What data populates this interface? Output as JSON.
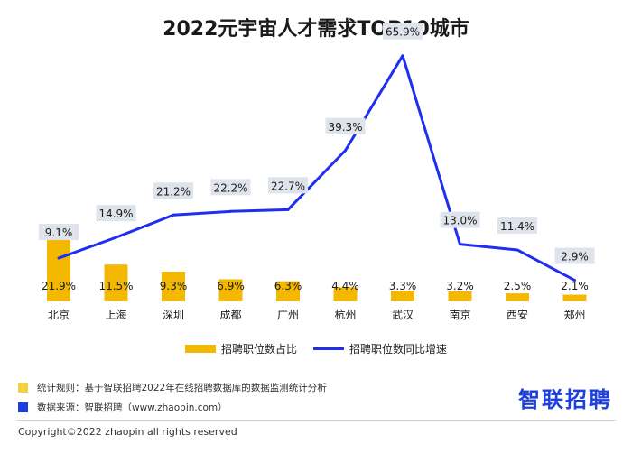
{
  "chart_data": {
    "type": "bar+line",
    "title": "2022元宇宙人才需求TOP10城市",
    "categories": [
      "北京",
      "上海",
      "深圳",
      "成都",
      "广州",
      "杭州",
      "武汉",
      "南京",
      "西安",
      "郑州"
    ],
    "series": [
      {
        "name": "招聘职位数占比",
        "kind": "bar",
        "values": [
          21.9,
          11.5,
          9.3,
          6.9,
          6.3,
          4.4,
          3.3,
          3.2,
          2.5,
          2.1
        ],
        "labels": [
          "21.9%",
          "11.5%",
          "9.3%",
          "6.9%",
          "6.3%",
          "4.4%",
          "3.3%",
          "3.2%",
          "2.5%",
          "2.1%"
        ]
      },
      {
        "name": "招聘职位数同比增速",
        "kind": "line",
        "values": [
          9.1,
          14.9,
          21.2,
          22.2,
          22.7,
          39.3,
          65.9,
          13.0,
          11.4,
          2.9
        ],
        "labels": [
          "9.1%",
          "14.9%",
          "21.2%",
          "22.2%",
          "22.7%",
          "39.3%",
          "65.9%",
          "13.0%",
          "11.4%",
          "2.9%"
        ]
      }
    ],
    "legend": [
      "招聘职位数占比",
      "招聘职位数同比增速"
    ],
    "legend_position": "bottom"
  },
  "colors": {
    "bar": "#f5b800",
    "line": "#1f2ff0",
    "label_box": "#dfe3ec"
  },
  "notes": {
    "rule_label": "统计规则：",
    "rule_text": "基于智联招聘2022年在线招聘数据库的数据监测统计分析",
    "source_label": "数据来源：",
    "source_text": "智联招聘（www.zhaopin.com）",
    "rule_color": "#f5d040",
    "source_color": "#1d3fe0"
  },
  "logo": "智联招聘",
  "copyright": "Copyright©2022 zhaopin all rights reserved"
}
